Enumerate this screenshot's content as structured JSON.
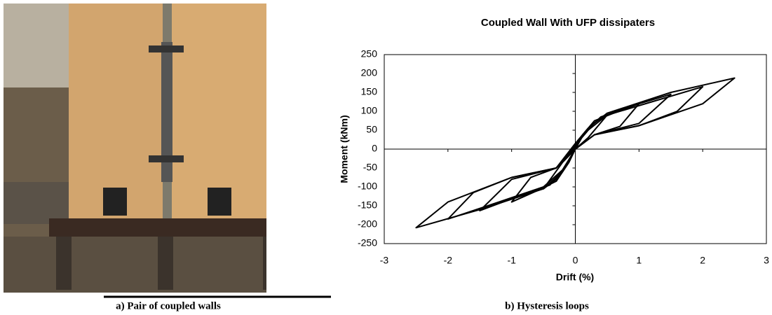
{
  "chart_data": {
    "type": "line",
    "title": "Coupled Wall With UFP dissipaters",
    "x_label": "Drift (%)",
    "y_label": "Moment (kNm)",
    "xlim": [
      -3,
      3
    ],
    "xticks": [
      -3,
      -2,
      -1,
      0,
      1,
      2,
      3
    ],
    "ylim": [
      -250,
      250
    ],
    "yticks": [
      -250,
      -200,
      -150,
      -100,
      -50,
      0,
      50,
      100,
      150,
      200,
      250
    ],
    "grid": false,
    "series": [
      {
        "color": "#000000",
        "x": [
          0,
          0.3,
          1,
          2,
          2.5,
          1.5,
          0.5,
          0.2,
          0,
          -0.3,
          -1,
          -2,
          -2.5,
          -1.5,
          -0.5,
          -0.2,
          0
        ],
        "values": [
          0,
          38,
          62,
          120,
          188,
          150,
          95,
          55,
          15,
          -50,
          -75,
          -140,
          -208,
          -160,
          -105,
          -60,
          0
        ]
      },
      {
        "color": "#000000",
        "x": [
          0,
          0.3,
          1,
          1.6,
          2,
          1.2,
          0.5,
          0.2,
          0,
          -0.3,
          -1,
          -1.6,
          -2,
          -1.2,
          -0.5,
          -0.2,
          0
        ],
        "values": [
          0,
          38,
          62,
          100,
          165,
          125,
          90,
          50,
          10,
          -50,
          -75,
          -115,
          -185,
          -140,
          -100,
          -55,
          0
        ]
      },
      {
        "color": "#000000",
        "x": [
          0,
          0.3,
          1,
          1.5,
          0.9,
          0.4,
          0.15,
          0,
          -0.3,
          -1,
          -1.5,
          -0.9,
          -0.4,
          -0.15,
          0
        ],
        "values": [
          0,
          38,
          68,
          145,
          115,
          85,
          45,
          5,
          -50,
          -80,
          -163,
          -125,
          -95,
          -45,
          0
        ]
      },
      {
        "color": "#000000",
        "x": [
          0,
          0.3,
          0.7,
          1,
          0.6,
          0.3,
          0.1,
          0,
          -0.3,
          -0.7,
          -1,
          -0.6,
          -0.3,
          -0.1,
          0
        ],
        "values": [
          0,
          38,
          60,
          120,
          95,
          75,
          35,
          0,
          -50,
          -75,
          -140,
          -110,
          -85,
          -35,
          0
        ]
      },
      {
        "color": "#000000",
        "x": [
          0,
          0.2,
          0.5,
          0.3,
          0.1,
          0,
          -0.2,
          -0.5,
          -0.3,
          -0.1,
          0
        ],
        "values": [
          0,
          30,
          90,
          70,
          30,
          0,
          -35,
          -105,
          -80,
          -30,
          0
        ]
      }
    ]
  },
  "captions": [
    "a) Pair of coupled walls",
    "b) Hysteresis loops"
  ]
}
